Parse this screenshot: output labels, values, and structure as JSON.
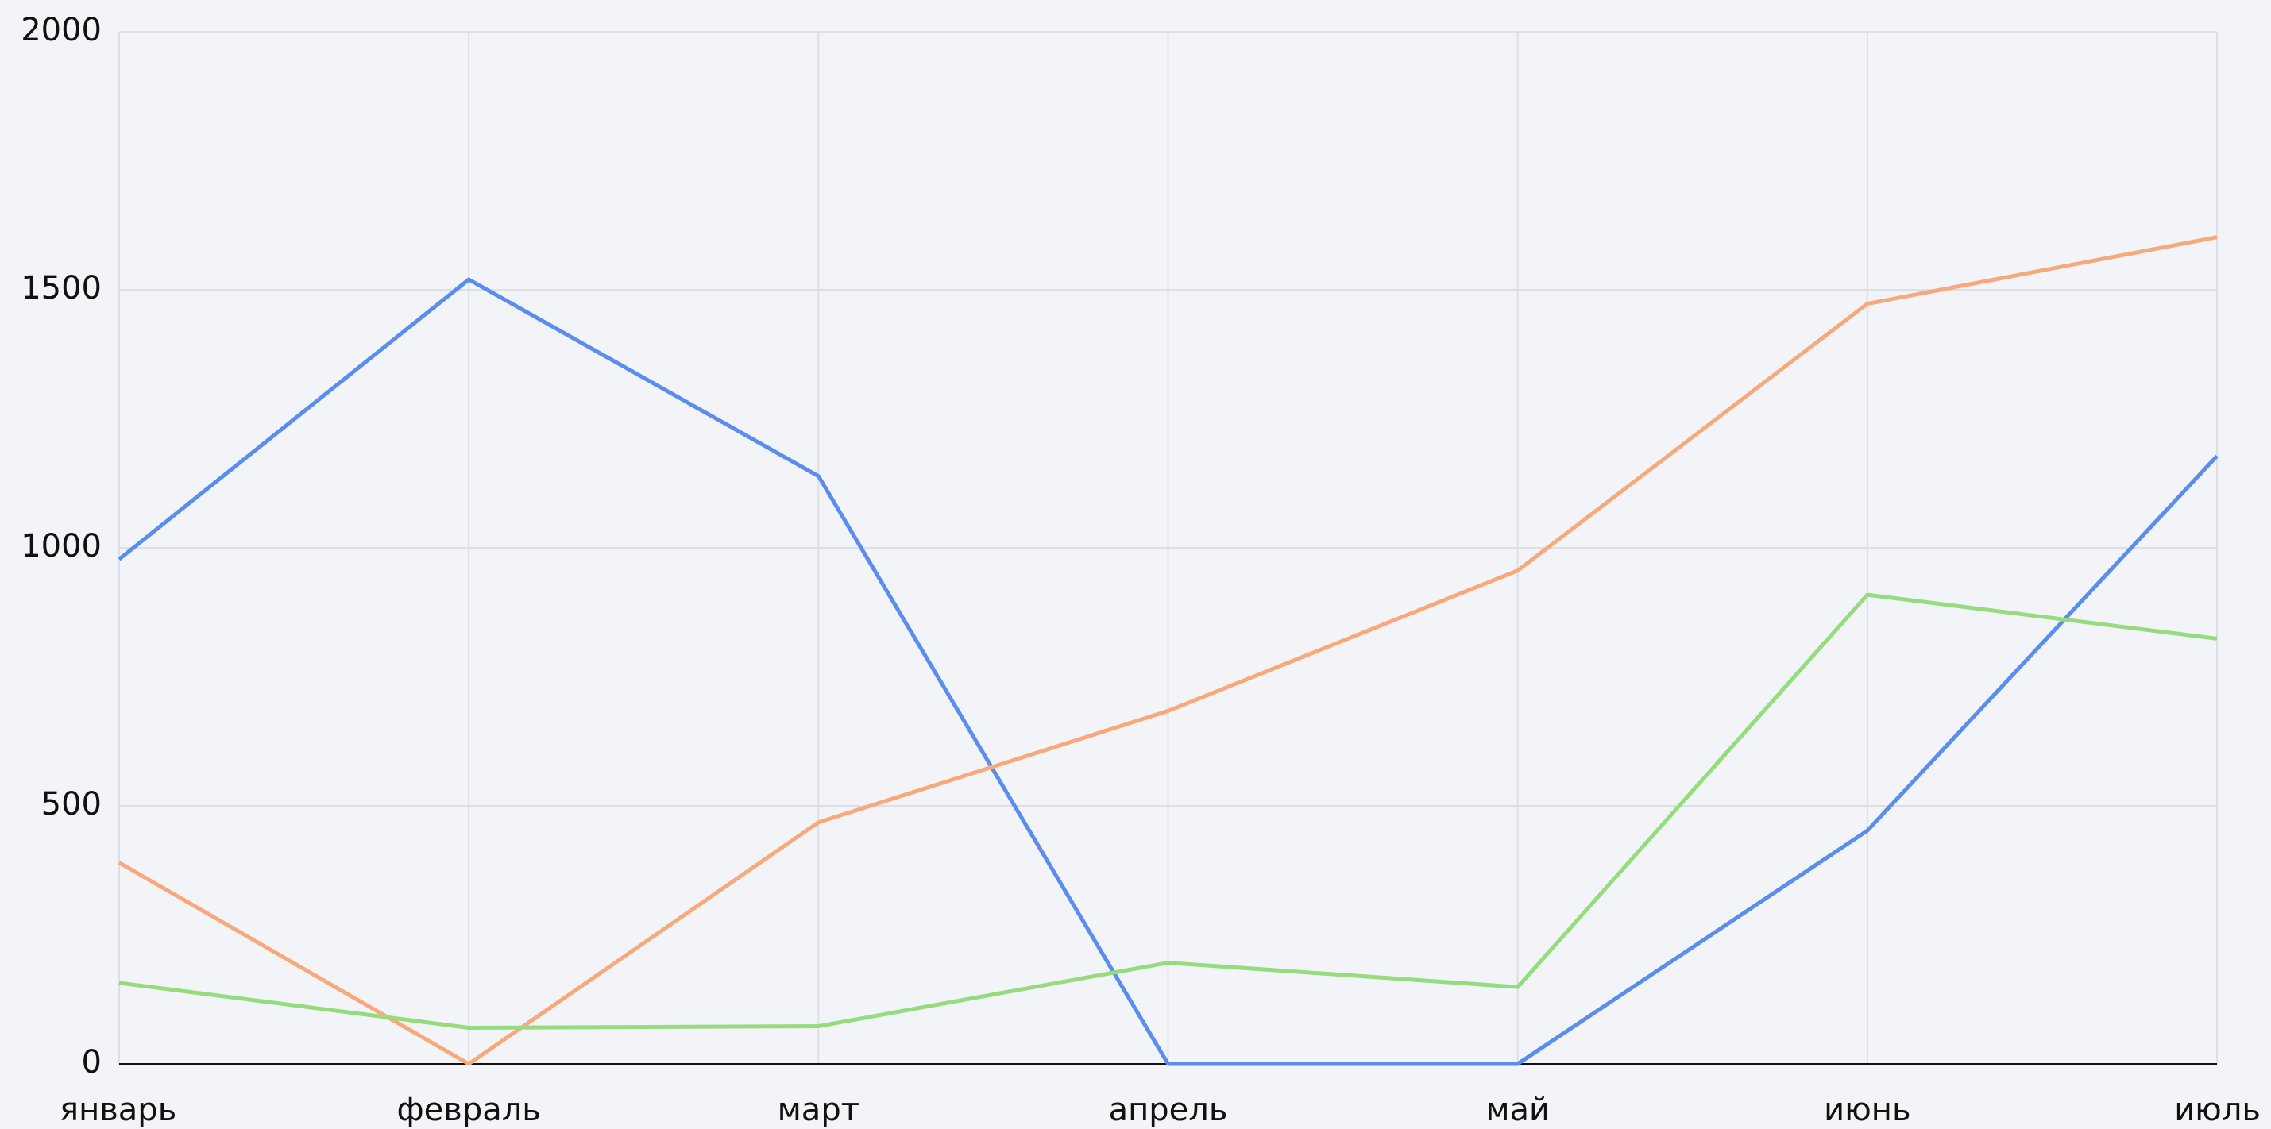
{
  "chart_data": {
    "type": "line",
    "categories": [
      "январь",
      "февраль",
      "март",
      "апрель",
      "май",
      "июнь",
      "июль"
    ],
    "series": [
      {
        "color": "#5b8def",
        "values": [
          978,
          1520,
          1139,
          0,
          0,
          452,
          1178
        ]
      },
      {
        "color": "#f8a97c",
        "values": [
          390,
          0,
          468,
          684,
          956,
          1473,
          1602
        ]
      },
      {
        "color": "#94dc7c",
        "values": [
          157,
          70,
          73,
          196,
          149,
          909,
          824
        ]
      }
    ],
    "ylim": [
      0,
      2000
    ],
    "yticks": [
      0,
      500,
      1000,
      1500,
      2000
    ],
    "grid": true
  }
}
